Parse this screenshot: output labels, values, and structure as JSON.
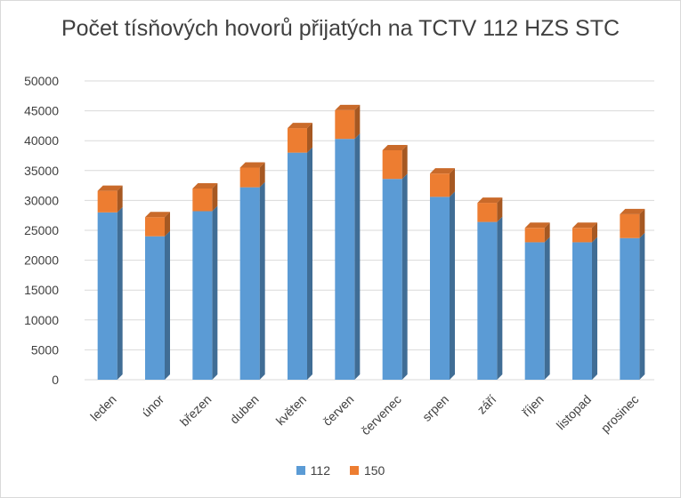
{
  "chart_data": {
    "type": "bar",
    "stacked": true,
    "title": "Počet tísňových hovorů přijatých na TCTV 112 HZS STC",
    "categories": [
      "leden",
      "únor",
      "březen",
      "duben",
      "květen",
      "červen",
      "červenec",
      "srpen",
      "září",
      "říjen",
      "listopad",
      "prosinec"
    ],
    "series": [
      {
        "name": "112",
        "color": "#5b9bd5",
        "values": [
          28000,
          24000,
          28200,
          32200,
          38000,
          40300,
          33600,
          30600,
          26400,
          23000,
          23000,
          23700
        ]
      },
      {
        "name": "150",
        "color": "#ed7d31",
        "values": [
          3600,
          3200,
          3800,
          3300,
          4100,
          4800,
          4800,
          3900,
          3200,
          2400,
          2400,
          4000
        ]
      }
    ],
    "yticks": [
      "0",
      "5000",
      "10000",
      "15000",
      "20000",
      "25000",
      "30000",
      "35000",
      "40000",
      "45000",
      "50000"
    ],
    "ylim": [
      0,
      50000
    ],
    "grid": true,
    "legend_position": "bottom"
  }
}
